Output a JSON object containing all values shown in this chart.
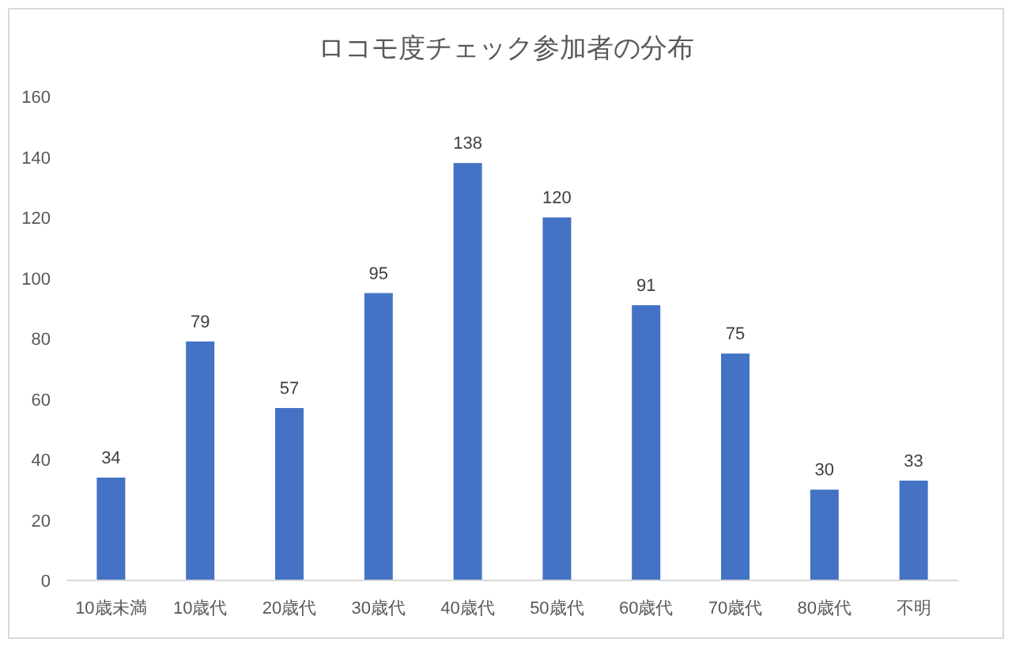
{
  "chart_data": {
    "type": "bar",
    "title": "ロコモ度チェック参加者の分布",
    "categories": [
      "10歳未満",
      "10歳代",
      "20歳代",
      "30歳代",
      "40歳代",
      "50歳代",
      "60歳代",
      "70歳代",
      "80歳代",
      "不明"
    ],
    "values": [
      34,
      79,
      57,
      95,
      138,
      120,
      91,
      75,
      30,
      33
    ],
    "color": "#4472c4",
    "ylim": [
      0,
      160
    ],
    "yticks": [
      0,
      20,
      40,
      60,
      80,
      100,
      120,
      140,
      160
    ],
    "grid": false,
    "data_labels": true
  }
}
